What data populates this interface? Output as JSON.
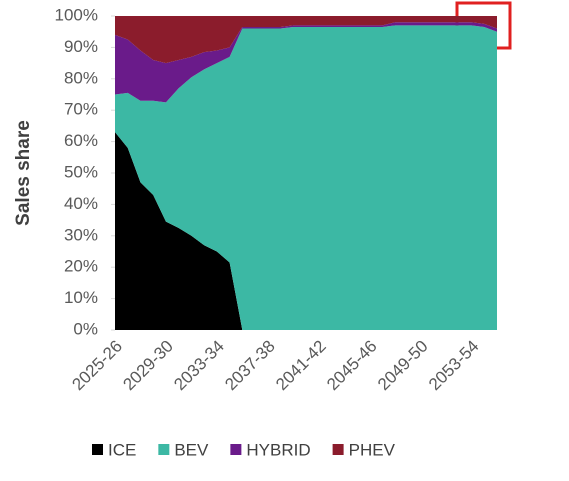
{
  "chart_data": {
    "type": "stacked-area",
    "y_label": "Sales share",
    "categories": [
      "2025-26",
      null,
      null,
      null,
      "2029-30",
      null,
      null,
      null,
      "2033-34",
      null,
      null,
      null,
      "2037-38",
      null,
      null,
      null,
      "2041-42",
      null,
      null,
      null,
      "2045-46",
      null,
      null,
      null,
      "2049-50",
      null,
      null,
      null,
      "2053-54",
      null,
      null
    ],
    "series": [
      {
        "name": "ICE",
        "color": "#000000",
        "values": [
          63,
          58,
          47,
          43,
          34.5,
          32.5,
          30,
          27,
          25,
          21.5,
          0,
          0,
          0,
          0,
          0,
          0,
          0,
          0,
          0,
          0,
          0,
          0,
          0,
          0,
          0,
          0,
          0,
          0,
          0,
          0,
          0
        ]
      },
      {
        "name": "BEV",
        "color": "#3cb8a4",
        "values": [
          12,
          17.5,
          26,
          30,
          38,
          44.5,
          50.5,
          56,
          60,
          65.5,
          96,
          96,
          96,
          96,
          96.5,
          96.5,
          96.5,
          96.5,
          96.5,
          96.5,
          96.5,
          96.5,
          97,
          97,
          97,
          97,
          97,
          97,
          97,
          96.5,
          95
        ]
      },
      {
        "name": "HYBRID",
        "color": "#6a1b8a",
        "values": [
          19,
          17,
          16,
          13,
          12.5,
          9,
          6.5,
          5.5,
          4,
          3,
          0.5,
          0.5,
          0.5,
          0.5,
          0.5,
          0.5,
          0.5,
          0.5,
          0.5,
          0.5,
          0.5,
          0.5,
          1,
          1,
          1,
          1,
          1,
          1,
          1,
          1,
          1
        ]
      },
      {
        "name": "PHEV",
        "color": "#8b1c2c",
        "values": [
          6,
          7.5,
          11,
          14,
          15,
          14,
          13,
          11.5,
          11,
          10,
          3.5,
          3.5,
          3.5,
          3.5,
          3,
          3,
          3,
          3,
          3,
          3,
          3,
          3,
          2,
          2,
          2,
          2,
          2,
          2,
          2,
          2.5,
          4
        ]
      }
    ],
    "ylim": [
      0,
      100
    ],
    "yticks": [
      {
        "value": 0,
        "label": "0%"
      },
      {
        "value": 10,
        "label": "10%"
      },
      {
        "value": 20,
        "label": "20%"
      },
      {
        "value": 30,
        "label": "30%"
      },
      {
        "value": 40,
        "label": "40%"
      },
      {
        "value": 50,
        "label": "50%"
      },
      {
        "value": 60,
        "label": "60%"
      },
      {
        "value": 70,
        "label": "70%"
      },
      {
        "value": 80,
        "label": "80%"
      },
      {
        "value": 90,
        "label": "90%"
      },
      {
        "value": 100,
        "label": "100%"
      }
    ],
    "legend": "bottom"
  }
}
